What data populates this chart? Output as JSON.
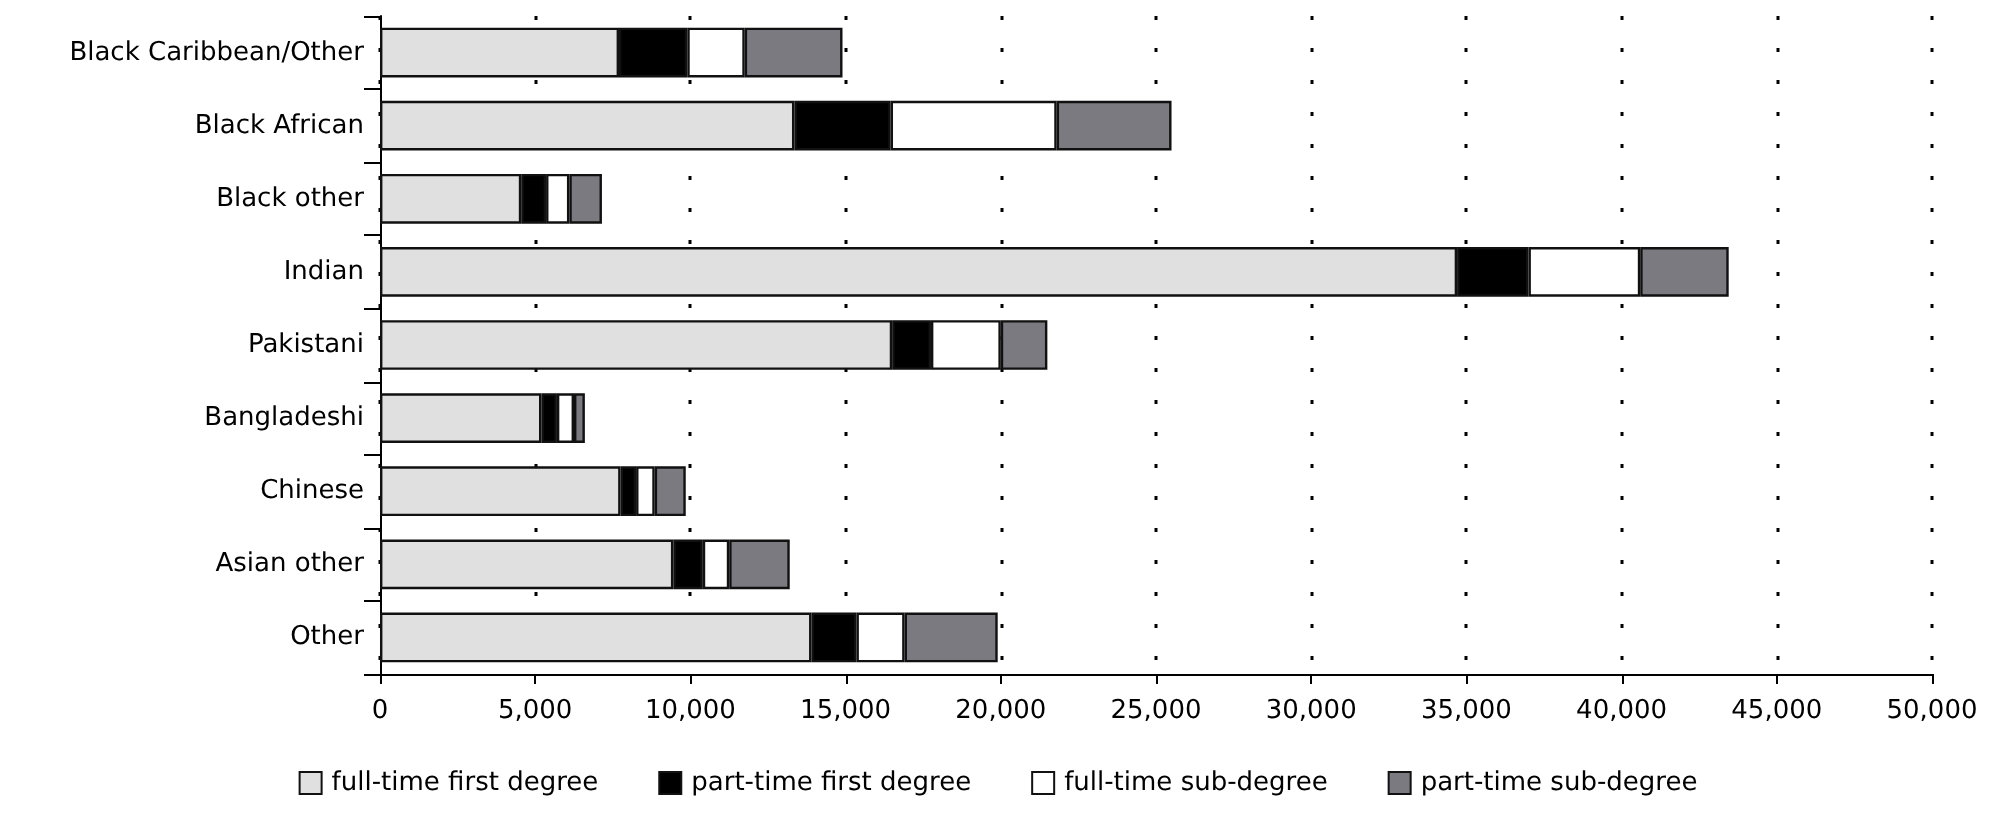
{
  "chart_data": {
    "type": "bar",
    "orientation": "horizontal",
    "stacked": true,
    "categories": [
      "Black Caribbean/Other",
      "Black African",
      "Black other",
      "Indian",
      "Pakistani",
      "Bangladeshi",
      "Chinese",
      "Asian other",
      "Other"
    ],
    "series": [
      {
        "name": "full-time first degree",
        "color": "#e0e0e0",
        "values": [
          7700,
          13350,
          4550,
          34700,
          16500,
          5200,
          7750,
          9450,
          13900
        ]
      },
      {
        "name": "part-time first degree",
        "color": "#000000",
        "values": [
          2200,
          3100,
          800,
          2300,
          1250,
          500,
          500,
          950,
          1450
        ]
      },
      {
        "name": "full-time sub-degree",
        "color": "#ffffff",
        "values": [
          1850,
          5350,
          750,
          3600,
          2250,
          550,
          600,
          850,
          1550
        ]
      },
      {
        "name": "part-time sub-degree",
        "color": "#7a7a80",
        "values": [
          3150,
          3700,
          1050,
          2850,
          1500,
          350,
          1000,
          1950,
          3000
        ]
      }
    ],
    "xlim": [
      0,
      50000
    ],
    "xticks": [
      {
        "value": 0,
        "label": "0"
      },
      {
        "value": 5000,
        "label": "5,000"
      },
      {
        "value": 10000,
        "label": "10,000"
      },
      {
        "value": 15000,
        "label": "15,000"
      },
      {
        "value": 20000,
        "label": "20,000"
      },
      {
        "value": 25000,
        "label": "25,000"
      },
      {
        "value": 30000,
        "label": "30,000"
      },
      {
        "value": 35000,
        "label": "35,000"
      },
      {
        "value": 40000,
        "label": "40,000"
      },
      {
        "value": 45000,
        "label": "45,000"
      },
      {
        "value": 50000,
        "label": "50,000"
      }
    ],
    "grid": "x",
    "legend": "bottom"
  }
}
